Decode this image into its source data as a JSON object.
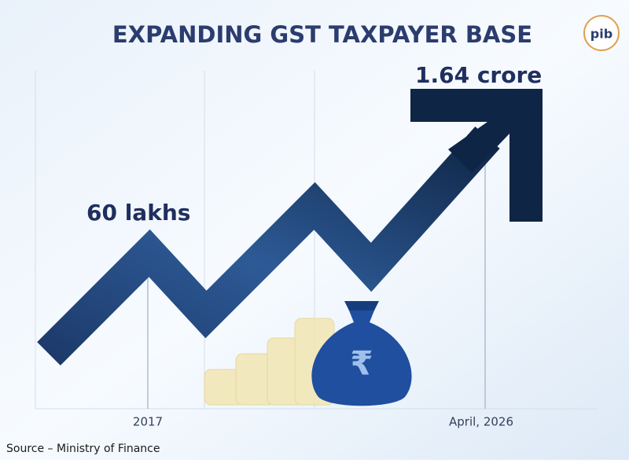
{
  "title": "EXPANDING GST TAXPAYER BASE",
  "logo": "pib",
  "points": [
    {
      "label": "60 lakhs",
      "date": "2017"
    },
    {
      "label": "1.64 crore",
      "date": "April, 2026"
    }
  ],
  "bag_symbol": "₹",
  "source": "Source – Ministry of Finance"
}
